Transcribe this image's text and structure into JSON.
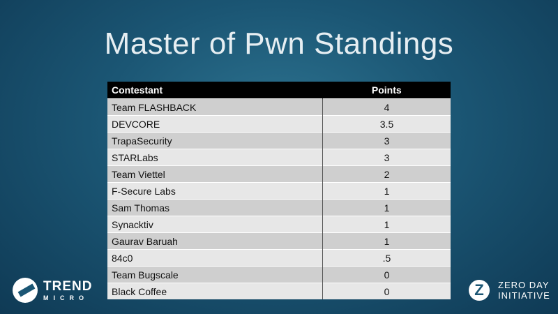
{
  "title": "Master of Pwn Standings",
  "table": {
    "headers": [
      "Contestant",
      "Points"
    ],
    "rows": [
      [
        "Team FLASHBACK",
        "4"
      ],
      [
        "DEVCORE",
        "3.5"
      ],
      [
        "TrapaSecurity",
        "3"
      ],
      [
        "STARLabs",
        "3"
      ],
      [
        "Team Viettel",
        "2"
      ],
      [
        "F-Secure Labs",
        "1"
      ],
      [
        "Sam Thomas",
        "1"
      ],
      [
        "Synacktiv",
        "1"
      ],
      [
        "Gaurav Baruah",
        "1"
      ],
      [
        "84c0",
        ".5"
      ],
      [
        "Team Bugscale",
        "0"
      ],
      [
        "Black Coffee",
        "0"
      ]
    ]
  },
  "logos": {
    "trend_micro": {
      "line1": "TREND",
      "line2": "MICRO"
    },
    "zdi": {
      "line1": "ZERO DAY",
      "line2": "INITIATIVE"
    }
  }
}
